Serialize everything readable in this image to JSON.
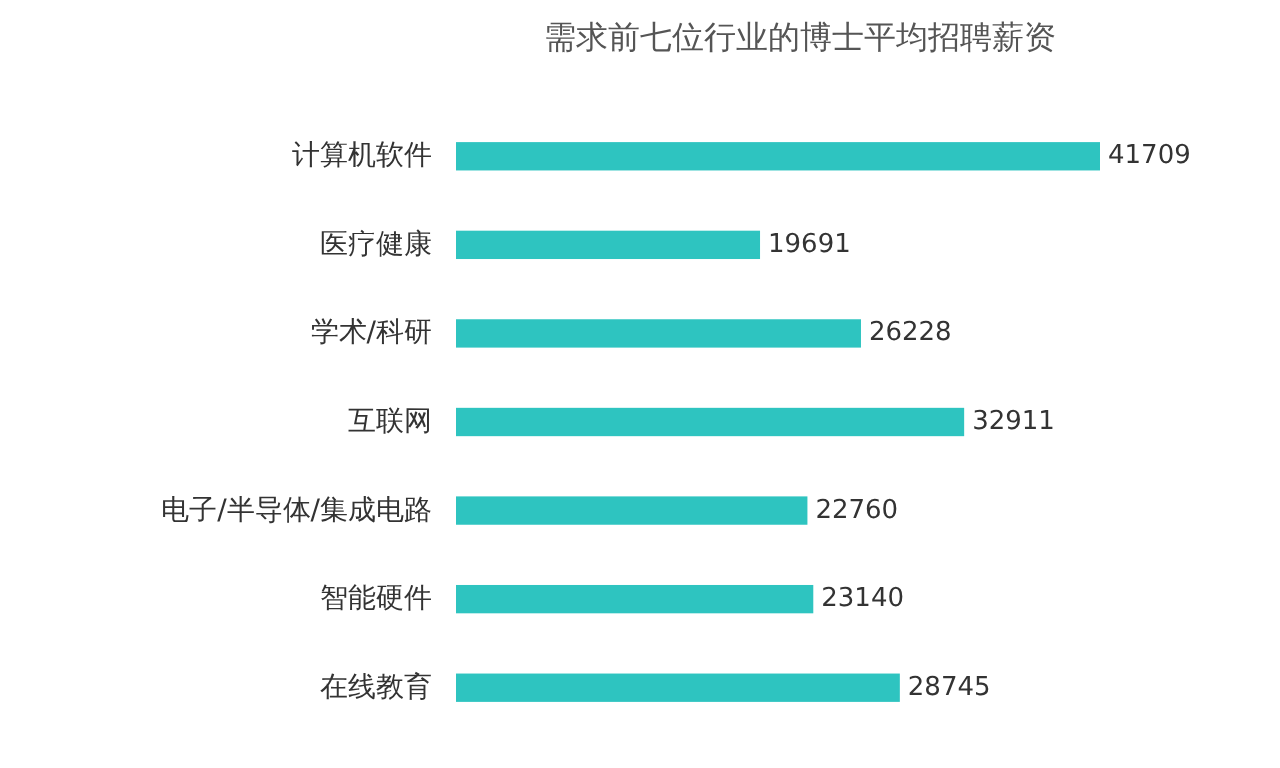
{
  "chart_data": {
    "type": "bar",
    "orientation": "horizontal",
    "title": "需求前七位行业的博士平均招聘薪资",
    "categories": [
      "计算机软件",
      "医疗健康",
      "学术/科研",
      "互联网",
      "电子/半导体/集成电路",
      "智能硬件",
      "在线教育"
    ],
    "values": [
      41709,
      19691,
      26228,
      32911,
      22760,
      23140,
      28745
    ],
    "color": "#2ec4c0",
    "data_labels": true
  }
}
